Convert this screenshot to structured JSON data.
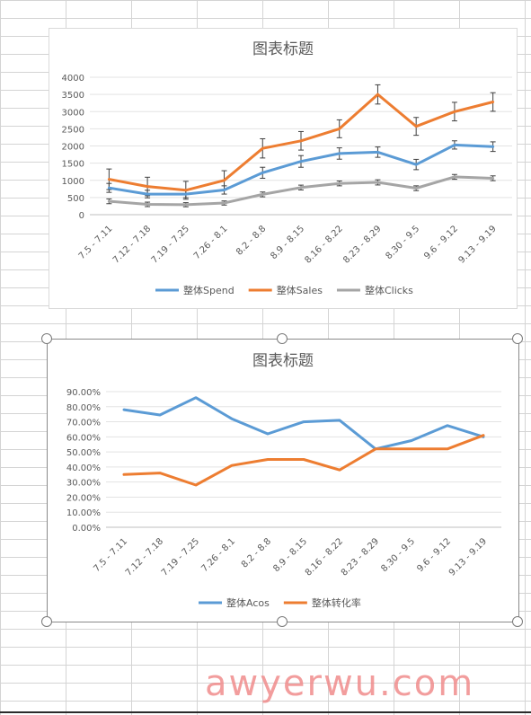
{
  "charts": {
    "top": {
      "title": "图表标题",
      "legend": [
        "整体Spend",
        "整体Sales",
        "整体Clicks"
      ]
    },
    "bottom": {
      "title": "图表标题",
      "legend": [
        "整体Acos",
        "整体转化率"
      ]
    }
  },
  "watermark": "awyerwu.com",
  "chart_data": [
    {
      "type": "line",
      "title": "图表标题",
      "categories": [
        "7.5 - 7.11",
        "7.12 - 7.18",
        "7.19 - 7.25",
        "7.26 - 8.1",
        "8.2 - 8.8",
        "8.9 - 8.15",
        "8.16 - 8.22",
        "8.23 - 8.29",
        "8.30 - 9.5",
        "9.6 - 9.12",
        "9.13 - 9.19"
      ],
      "yticks": [
        "0",
        "500",
        "1000",
        "1500",
        "2000",
        "2500",
        "3000",
        "3500",
        "4000"
      ],
      "ylim": [
        0,
        4000
      ],
      "grid": true,
      "legend_position": "bottom",
      "error_bars": true,
      "series": [
        {
          "name": "整体Spend",
          "color": "#5b9bd5",
          "values": [
            780,
            600,
            600,
            720,
            1220,
            1550,
            1780,
            1820,
            1460,
            2030,
            1980
          ],
          "errors": [
            130,
            110,
            105,
            120,
            160,
            170,
            165,
            150,
            150,
            120,
            140
          ]
        },
        {
          "name": "整体Sales",
          "color": "#ed7d31",
          "values": [
            1030,
            820,
            710,
            1000,
            1930,
            2150,
            2500,
            3500,
            2570,
            3000,
            3280
          ],
          "errors": [
            300,
            270,
            260,
            280,
            280,
            270,
            260,
            280,
            260,
            270,
            270
          ]
        },
        {
          "name": "整体Clicks",
          "color": "#a5a5a5",
          "values": [
            390,
            300,
            290,
            340,
            590,
            790,
            910,
            940,
            770,
            1100,
            1060
          ],
          "errors": [
            70,
            65,
            60,
            60,
            70,
            70,
            70,
            75,
            70,
            70,
            70
          ]
        }
      ]
    },
    {
      "type": "line",
      "title": "图表标题",
      "categories": [
        "7.5 - 7.11",
        "7.12 - 7.18",
        "7.19 - 7.25",
        "7.26 - 8.1",
        "8.2 - 8.8",
        "8.9 - 8.15",
        "8.16 - 8.22",
        "8.23 - 8.29",
        "8.30 - 9.5",
        "9.6 - 9.12",
        "9.13 - 9.19"
      ],
      "yticks": [
        "0.00%",
        "10.00%",
        "20.00%",
        "30.00%",
        "40.00%",
        "50.00%",
        "60.00%",
        "70.00%",
        "80.00%",
        "90.00%"
      ],
      "ylim": [
        0,
        0.9
      ],
      "grid": true,
      "legend_position": "bottom",
      "series": [
        {
          "name": "整体Acos",
          "color": "#5b9bd5",
          "values": [
            0.78,
            0.745,
            0.86,
            0.72,
            0.62,
            0.7,
            0.71,
            0.52,
            0.575,
            0.675,
            0.6
          ]
        },
        {
          "name": "整体转化率",
          "color": "#ed7d31",
          "values": [
            0.35,
            0.36,
            0.28,
            0.41,
            0.45,
            0.45,
            0.38,
            0.52,
            0.52,
            0.52,
            0.61
          ]
        }
      ]
    }
  ]
}
